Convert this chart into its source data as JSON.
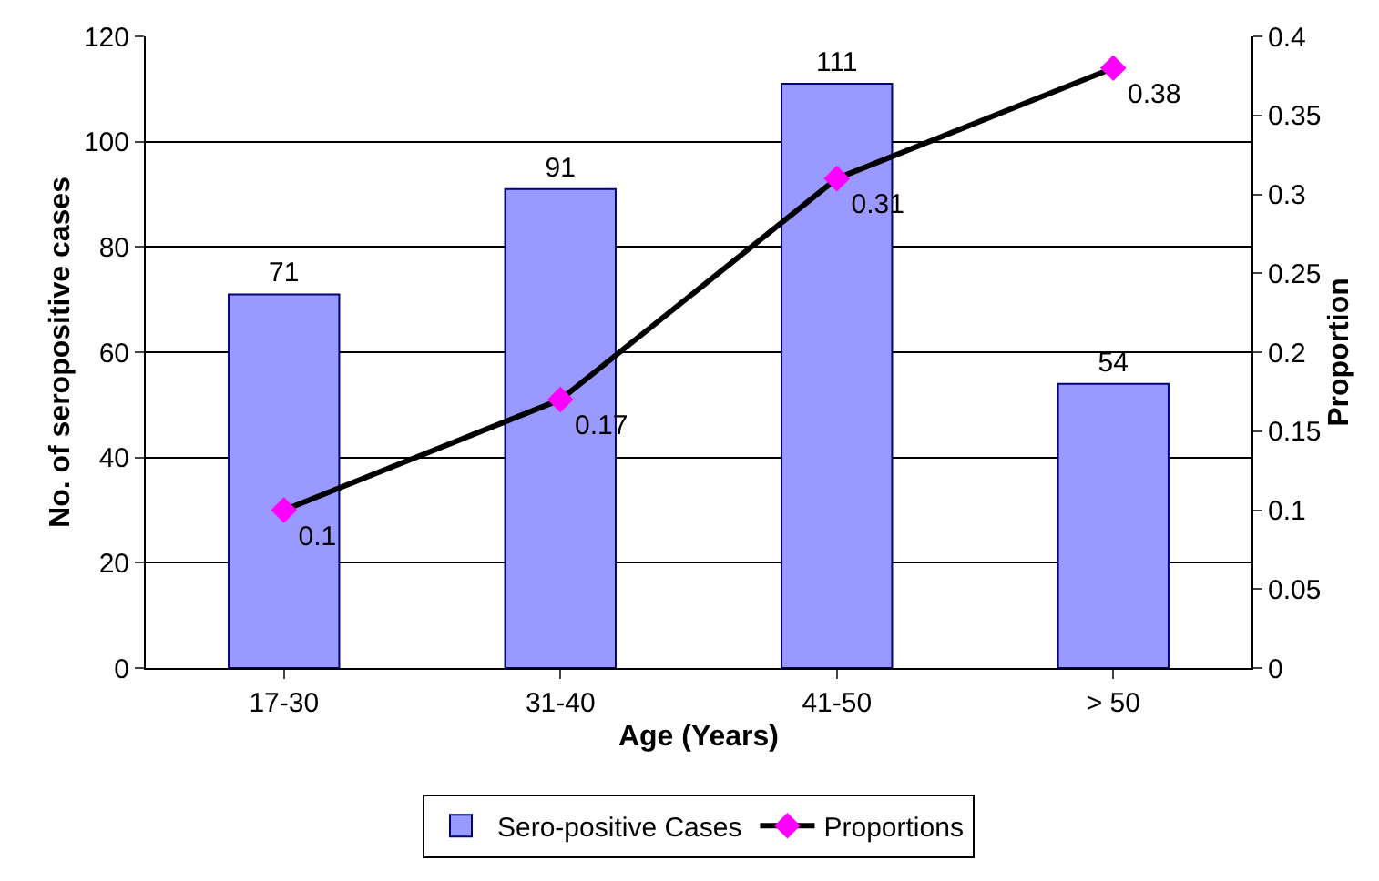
{
  "chart_data": {
    "type": "bar",
    "xlabel": "Age (Years)",
    "ylabel": "No. of seropositive cases",
    "y2label": "Proportion",
    "categories": [
      "17-30",
      "31-40",
      "41-50",
      "> 50"
    ],
    "series": [
      {
        "name": "Sero-positive Cases",
        "color": "#9999ff",
        "values": [
          71,
          91,
          111,
          54
        ]
      },
      {
        "name": "Proportions",
        "type": "line",
        "axis": "y2",
        "color": "#000000",
        "colors": [
          "#ff00ff",
          "#ff00ff",
          "#ff00ff",
          "#ff00ff"
        ],
        "marker": "diamond",
        "values": [
          0.1,
          0.17,
          0.31,
          0.38
        ]
      }
    ],
    "ylim": [
      0,
      120
    ],
    "yticks": [
      0,
      20,
      40,
      60,
      80,
      100,
      120
    ],
    "y2lim": [
      0,
      0.4
    ],
    "y2ticks": [
      0,
      0.05,
      0.1,
      0.15,
      0.2,
      0.25,
      0.3,
      0.35,
      0.4
    ],
    "data_labels": true,
    "grid": "y",
    "legend": "bottom"
  }
}
